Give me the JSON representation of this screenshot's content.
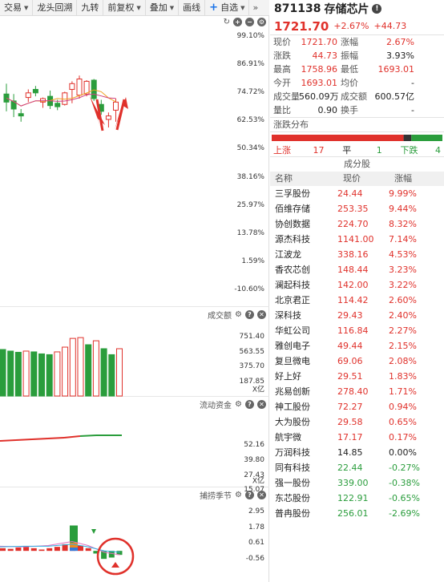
{
  "toolbar": {
    "items": [
      "交易",
      "龙头回溯",
      "九转",
      "前复权",
      "叠加",
      "画线"
    ],
    "add_label": "自选",
    "more": "»"
  },
  "kline": {
    "yticks": [
      "99.10%",
      "86.91%",
      "74.72%",
      "62.53%",
      "50.34%",
      "38.16%",
      "25.97%",
      "13.78%",
      "1.59%",
      "-10.60%"
    ],
    "candles": [
      {
        "o": 74.0,
        "h": 78.5,
        "l": 66.5,
        "c": 70.5
      },
      {
        "o": 71.0,
        "h": 74.0,
        "l": 64.0,
        "c": 67.5
      },
      {
        "o": 65.5,
        "h": 67.5,
        "l": 62.0,
        "c": 64.5
      },
      {
        "o": 72.5,
        "h": 76.0,
        "l": 70.5,
        "c": 74.5
      },
      {
        "o": 76.0,
        "h": 77.5,
        "l": 73.0,
        "c": 74.5
      },
      {
        "o": 70.5,
        "h": 72.5,
        "l": 68.0,
        "c": 72.0
      },
      {
        "o": 73.0,
        "h": 75.5,
        "l": 67.5,
        "c": 69.0
      },
      {
        "o": 70.0,
        "h": 71.5,
        "l": 67.0,
        "c": 68.5
      },
      {
        "o": 69.5,
        "h": 75.0,
        "l": 69.0,
        "c": 74.5
      },
      {
        "o": 76.0,
        "h": 79.5,
        "l": 70.0,
        "c": 78.5
      },
      {
        "o": 73.5,
        "h": 82.0,
        "l": 72.0,
        "c": 80.5
      },
      {
        "o": 74.0,
        "h": 80.0,
        "l": 73.0,
        "c": 79.5
      },
      {
        "o": 80.0,
        "h": 80.5,
        "l": 71.0,
        "c": 72.0
      },
      {
        "o": 69.5,
        "h": 71.5,
        "l": 65.0,
        "c": 66.5
      },
      {
        "o": 63.0,
        "h": 66.0,
        "l": 59.5,
        "c": 64.5
      },
      {
        "o": 67.0,
        "h": 72.0,
        "l": 62.0,
        "c": 70.5
      }
    ]
  },
  "volume": {
    "title": "成交额",
    "unit": "X亿",
    "yticks": [
      "751.40",
      "563.55",
      "375.70",
      "187.85"
    ],
    "values": [
      {
        "v": 590,
        "up": false
      },
      {
        "v": 570,
        "up": false
      },
      {
        "v": 555,
        "up": false
      },
      {
        "v": 570,
        "up": true
      },
      {
        "v": 560,
        "up": false
      },
      {
        "v": 535,
        "up": false
      },
      {
        "v": 525,
        "up": false
      },
      {
        "v": 560,
        "up": true
      },
      {
        "v": 620,
        "up": true
      },
      {
        "v": 730,
        "up": true
      },
      {
        "v": 740,
        "up": true
      },
      {
        "v": 650,
        "up": false
      },
      {
        "v": 700,
        "up": true
      },
      {
        "v": 600,
        "up": false
      },
      {
        "v": 525,
        "up": false
      },
      {
        "v": 600,
        "up": true
      }
    ]
  },
  "fund": {
    "title": "流动资金",
    "unit": "X亿",
    "yticks": [
      "52.16",
      "39.80",
      "27.43",
      "15.07"
    ]
  },
  "catch": {
    "title": "捕捞季节",
    "yticks": [
      "2.95",
      "1.78",
      "0.61",
      "-0.56"
    ]
  },
  "quote": {
    "code": "871138",
    "name": "存储芯片",
    "price": "1721.70",
    "pct": "+2.67%",
    "chg": "+44.73",
    "fields": [
      {
        "l1": "现价",
        "v1": "1721.70",
        "c1": "red",
        "l2": "涨幅",
        "v2": "2.67%",
        "c2": "red"
      },
      {
        "l1": "涨跌",
        "v1": "44.73",
        "c1": "red",
        "l2": "振幅",
        "v2": "3.93%",
        "c2": "black"
      },
      {
        "l1": "最高",
        "v1": "1758.96",
        "c1": "red",
        "l2": "最低",
        "v2": "1693.01",
        "c2": "red"
      },
      {
        "l1": "今开",
        "v1": "1693.01",
        "c1": "red",
        "l2": "均价",
        "v2": "-",
        "c2": "black"
      },
      {
        "l1": "成交量",
        "v1": "560.09万",
        "c1": "black",
        "l2": "成交额",
        "v2": "600.57亿",
        "c2": "black"
      },
      {
        "l1": "量比",
        "v1": "0.90",
        "c1": "black",
        "l2": "换手",
        "v2": "-",
        "c2": "black"
      }
    ],
    "dist_label": "涨跌分布",
    "up_label": "上涨",
    "up_count": "17",
    "flat_label": "平",
    "flat_count": "1",
    "down_label": "下跌",
    "down_count": "4",
    "constituents_title": "成分股",
    "col_name": "名称",
    "col_price": "现价",
    "col_pct": "涨幅",
    "rows": [
      {
        "name": "三孚股份",
        "price": "24.44",
        "pct": "9.99%",
        "up": true
      },
      {
        "name": "佰维存储",
        "price": "253.35",
        "pct": "9.44%",
        "up": true
      },
      {
        "name": "协创数据",
        "price": "224.70",
        "pct": "8.32%",
        "up": true
      },
      {
        "name": "源杰科技",
        "price": "1141.00",
        "pct": "7.14%",
        "up": true
      },
      {
        "name": "江波龙",
        "price": "338.16",
        "pct": "4.53%",
        "up": true
      },
      {
        "name": "香农芯创",
        "price": "148.44",
        "pct": "3.23%",
        "up": true
      },
      {
        "name": "澜起科技",
        "price": "142.00",
        "pct": "3.22%",
        "up": true
      },
      {
        "name": "北京君正",
        "price": "114.42",
        "pct": "2.60%",
        "up": true
      },
      {
        "name": "深科技",
        "price": "29.43",
        "pct": "2.40%",
        "up": true
      },
      {
        "name": "华虹公司",
        "price": "116.84",
        "pct": "2.27%",
        "up": true
      },
      {
        "name": "雅创电子",
        "price": "49.44",
        "pct": "2.15%",
        "up": true
      },
      {
        "name": "复旦微电",
        "price": "69.06",
        "pct": "2.08%",
        "up": true
      },
      {
        "name": "好上好",
        "price": "29.51",
        "pct": "1.83%",
        "up": true
      },
      {
        "name": "兆易创新",
        "price": "278.40",
        "pct": "1.71%",
        "up": true
      },
      {
        "name": "神工股份",
        "price": "72.27",
        "pct": "0.94%",
        "up": true
      },
      {
        "name": "大为股份",
        "price": "29.58",
        "pct": "0.65%",
        "up": true
      },
      {
        "name": "航宇微",
        "price": "17.17",
        "pct": "0.17%",
        "up": true
      },
      {
        "name": "万润科技",
        "price": "14.85",
        "pct": "0.00%",
        "up": null
      },
      {
        "name": "同有科技",
        "price": "22.44",
        "pct": "-0.27%",
        "up": false
      },
      {
        "name": "强一股份",
        "price": "339.00",
        "pct": "-0.38%",
        "up": false
      },
      {
        "name": "东芯股份",
        "price": "122.91",
        "pct": "-0.65%",
        "up": false
      },
      {
        "name": "普冉股份",
        "price": "256.01",
        "pct": "-2.69%",
        "up": false
      }
    ]
  },
  "colors": {
    "up": "#e0312b",
    "down": "#2a9d3c",
    "flat": "#333333"
  }
}
